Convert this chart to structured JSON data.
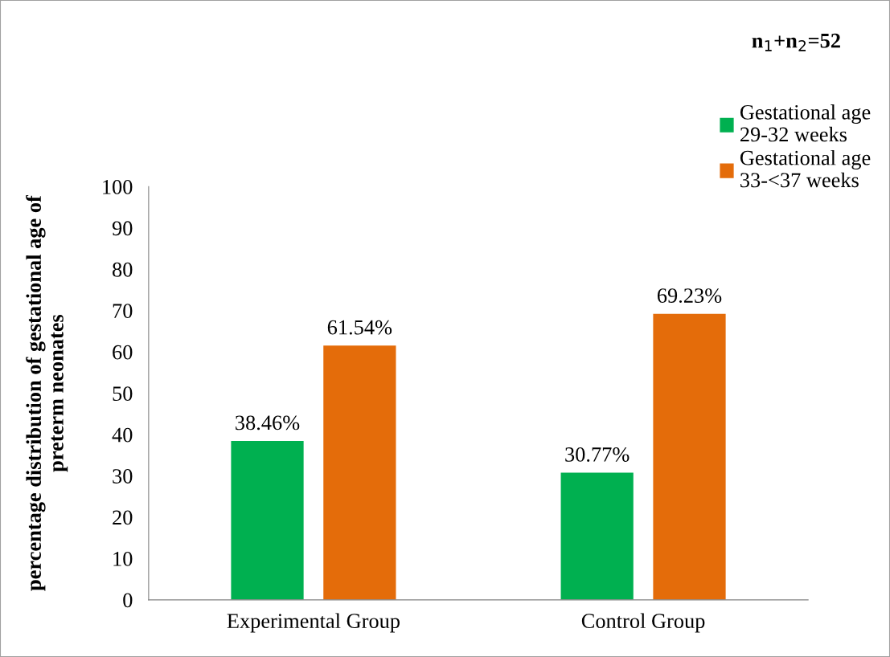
{
  "chart_data": {
    "type": "bar",
    "ylabel": "percentage distribution of gestational age of\npreterm neonates",
    "categories": [
      "Experimental Group",
      "Control Group"
    ],
    "series": [
      {
        "name": "Gestational age\n29-32 weeks",
        "color": "#00b050",
        "values": [
          38.46,
          30.77
        ],
        "value_labels": [
          "38.46%",
          "30.77%"
        ]
      },
      {
        "name": "Gestational age\n33-<37 weeks",
        "color": "#e46c0a",
        "values": [
          61.54,
          69.23
        ],
        "value_labels": [
          "61.54%",
          "69.23%"
        ]
      }
    ],
    "ylim": [
      0,
      100
    ],
    "yticks": [
      0,
      10,
      20,
      30,
      40,
      50,
      60,
      70,
      80,
      90,
      100
    ],
    "grid": false,
    "legend": "top right",
    "annotations": [
      "n$_{1}$+n$_{2}$=52"
    ]
  }
}
